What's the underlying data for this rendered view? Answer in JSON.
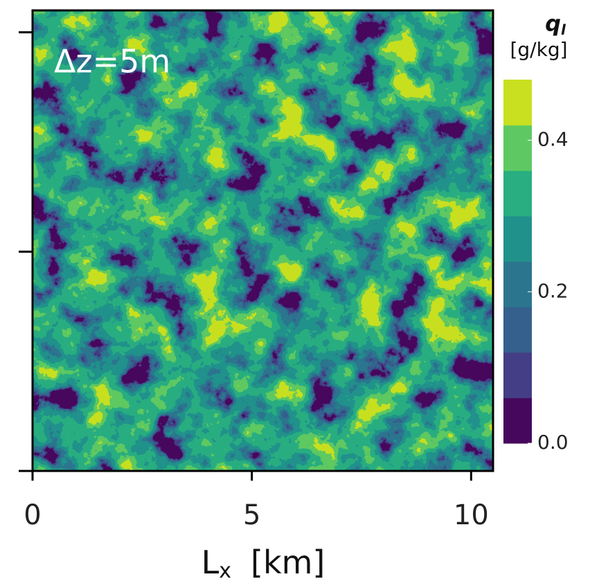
{
  "chart_data": {
    "type": "contour",
    "annotation": "Δz=5m",
    "xlabel": "L",
    "xlabel_subscript": "x",
    "xlabel_unit": "[km]",
    "xlim": [
      0,
      10.5
    ],
    "xticks": [
      0,
      5,
      10
    ],
    "ylim": [
      0,
      10.5
    ],
    "yticks": [
      0,
      5,
      10
    ],
    "colorbar_symbol": "q",
    "colorbar_subscript": "l",
    "colorbar_unit": "[g/kg]",
    "levels": [
      0,
      0.06,
      0.12,
      0.18,
      0.24,
      0.3,
      0.36,
      0.42,
      0.48
    ],
    "colors": [
      "#46085c",
      "#433e85",
      "#355f8d",
      "#2b758e",
      "#21918c",
      "#28ae80",
      "#5ec962",
      "#c8e020"
    ],
    "cticks": [
      {
        "value": 0,
        "label": "0.0"
      },
      {
        "value": 0.2,
        "label": "0.2"
      },
      {
        "value": 0.4,
        "label": "0.4"
      }
    ]
  }
}
